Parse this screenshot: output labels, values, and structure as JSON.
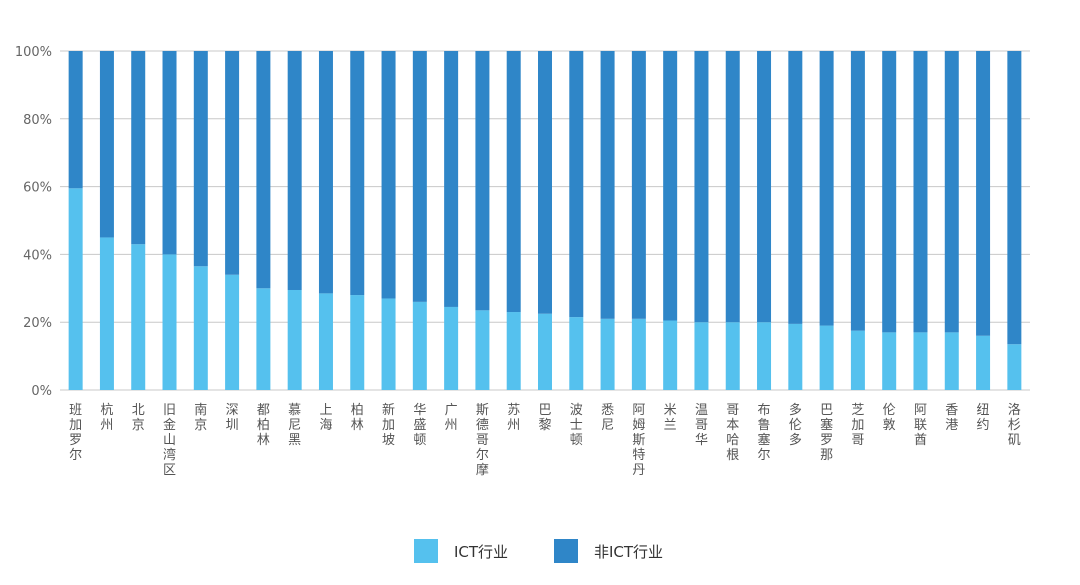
{
  "chart_data": {
    "type": "bar",
    "stacked": true,
    "percent_stacked": true,
    "categories": [
      "班加罗尔",
      "杭州",
      "北京",
      "旧金山湾区",
      "南京",
      "深圳",
      "都柏林",
      "慕尼黑",
      "上海",
      "柏林",
      "新加坡",
      "华盛顿",
      "广州",
      "斯德哥尔摩",
      "苏州",
      "巴黎",
      "波士顿",
      "悉尼",
      "阿姆斯特丹",
      "米兰",
      "温哥华",
      "哥本哈根",
      "布鲁塞尔",
      "多伦多",
      "巴塞罗那",
      "芝加哥",
      "伦敦",
      "阿联酋",
      "香港",
      "纽约",
      "洛杉矶"
    ],
    "series": [
      {
        "name": "ICT行业",
        "color": "#55c1ee",
        "values": [
          59.5,
          45,
          43,
          40,
          36.5,
          34,
          30,
          29.5,
          28.5,
          28,
          27,
          26,
          24.5,
          23.5,
          23,
          22.5,
          21.5,
          21,
          21,
          20.5,
          20,
          20,
          20,
          19.5,
          19,
          17.5,
          17,
          17,
          17,
          16,
          13.5
        ]
      },
      {
        "name": "非ICT行业",
        "color": "#2f86c8",
        "values": [
          40.5,
          55,
          57,
          60,
          63.5,
          66,
          70,
          70.5,
          71.5,
          72,
          73,
          74,
          75.5,
          76.5,
          77,
          77.5,
          78.5,
          79,
          79,
          79.5,
          80,
          80,
          80,
          80.5,
          81,
          82.5,
          83,
          83,
          83,
          84,
          86.5
        ]
      }
    ],
    "ylim": [
      0,
      100
    ],
    "yticks": [
      "0%",
      "20%",
      "40%",
      "60%",
      "80%",
      "100%"
    ],
    "grid": true,
    "legend_position": "bottom-center"
  }
}
